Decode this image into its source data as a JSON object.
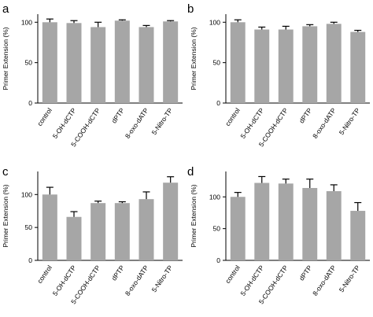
{
  "chart_data": [
    {
      "type": "bar",
      "panel": "a",
      "ylabel": "Primer Extension (%)",
      "ylim": [
        0,
        110
      ],
      "yticks": [
        0,
        50,
        100
      ],
      "categories": [
        "control",
        "5-OH-dCTP",
        "5-COOH-dCTP",
        "dPTP",
        "8-oxo-dATP",
        "5-Nitro-TP"
      ],
      "values": [
        100,
        99,
        94,
        102,
        94,
        101
      ],
      "errors": [
        4,
        3,
        6,
        1,
        2,
        1
      ],
      "bar_color": "#a6a6a6",
      "grid": false
    },
    {
      "type": "bar",
      "panel": "b",
      "ylabel": "Primer Extension (%)",
      "ylim": [
        0,
        110
      ],
      "yticks": [
        0,
        50,
        100
      ],
      "categories": [
        "control",
        "5-OH-dCTP",
        "5-COOH-dCTP",
        "dPTP",
        "8-oxo-dATP",
        "5-Nitro-TP"
      ],
      "values": [
        100,
        91,
        91,
        95,
        98,
        88
      ],
      "errors": [
        3,
        3,
        4,
        2,
        2,
        2
      ],
      "bar_color": "#a6a6a6",
      "grid": false
    },
    {
      "type": "bar",
      "panel": "c",
      "ylabel": "Primer Extension (%)",
      "ylim": [
        0,
        135
      ],
      "yticks": [
        0,
        50,
        100
      ],
      "categories": [
        "control",
        "5-OH-dCTP",
        "5-COOH-dCTP",
        "dPTP",
        "8-oxo-dATP",
        "5-Nitro-TP"
      ],
      "values": [
        100,
        66,
        87,
        87,
        93,
        118
      ],
      "errors": [
        11,
        8,
        3,
        2,
        11,
        9
      ],
      "bar_color": "#a6a6a6",
      "grid": false
    },
    {
      "type": "bar",
      "panel": "d",
      "ylabel": "Primer Extension (%)",
      "ylim": [
        0,
        140
      ],
      "yticks": [
        0,
        50,
        100
      ],
      "categories": [
        "control",
        "5-OH-dCTP",
        "5-COOH-dCTP",
        "dPTP",
        "8-oxo-dATP",
        "5-Nitro-TP"
      ],
      "values": [
        100,
        122,
        121,
        114,
        109,
        78
      ],
      "errors": [
        7,
        10,
        7,
        14,
        10,
        13
      ],
      "bar_color": "#a6a6a6",
      "grid": false
    }
  ]
}
